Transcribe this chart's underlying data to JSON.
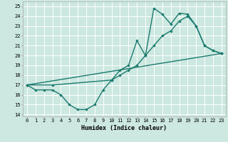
{
  "xlabel": "Humidex (Indice chaleur)",
  "bg_color": "#cce8e0",
  "line_color": "#1a7a6e",
  "grid_color": "#ffffff",
  "xlim": [
    -0.5,
    23.5
  ],
  "ylim": [
    13.8,
    25.5
  ],
  "yticks": [
    14,
    15,
    16,
    17,
    18,
    19,
    20,
    21,
    22,
    23,
    24,
    25
  ],
  "xticks": [
    0,
    1,
    2,
    3,
    4,
    5,
    6,
    7,
    8,
    9,
    10,
    11,
    12,
    13,
    14,
    15,
    16,
    17,
    18,
    19,
    20,
    21,
    22,
    23
  ],
  "line1_x": [
    0,
    1,
    2,
    3,
    4,
    5,
    6,
    7,
    8,
    9,
    10,
    11,
    12,
    13,
    14,
    15,
    16,
    17,
    18,
    19,
    20,
    21,
    22,
    23
  ],
  "line1_y": [
    17.0,
    16.5,
    16.5,
    16.5,
    16.0,
    15.0,
    14.5,
    14.5,
    15.0,
    16.5,
    17.5,
    18.5,
    19.0,
    21.5,
    20.0,
    24.8,
    24.2,
    23.2,
    24.3,
    24.2,
    23.0,
    21.0,
    20.5,
    20.2
  ],
  "line2_x": [
    0,
    3,
    10,
    11,
    12,
    13,
    14,
    15,
    16,
    17,
    18,
    19,
    20,
    21,
    22,
    23
  ],
  "line2_y": [
    17.0,
    17.0,
    17.5,
    18.0,
    18.5,
    19.0,
    20.0,
    21.0,
    22.0,
    22.5,
    23.5,
    24.0,
    23.0,
    21.0,
    20.5,
    20.2
  ],
  "line3_x": [
    0,
    23
  ],
  "line3_y": [
    17.0,
    20.2
  ]
}
